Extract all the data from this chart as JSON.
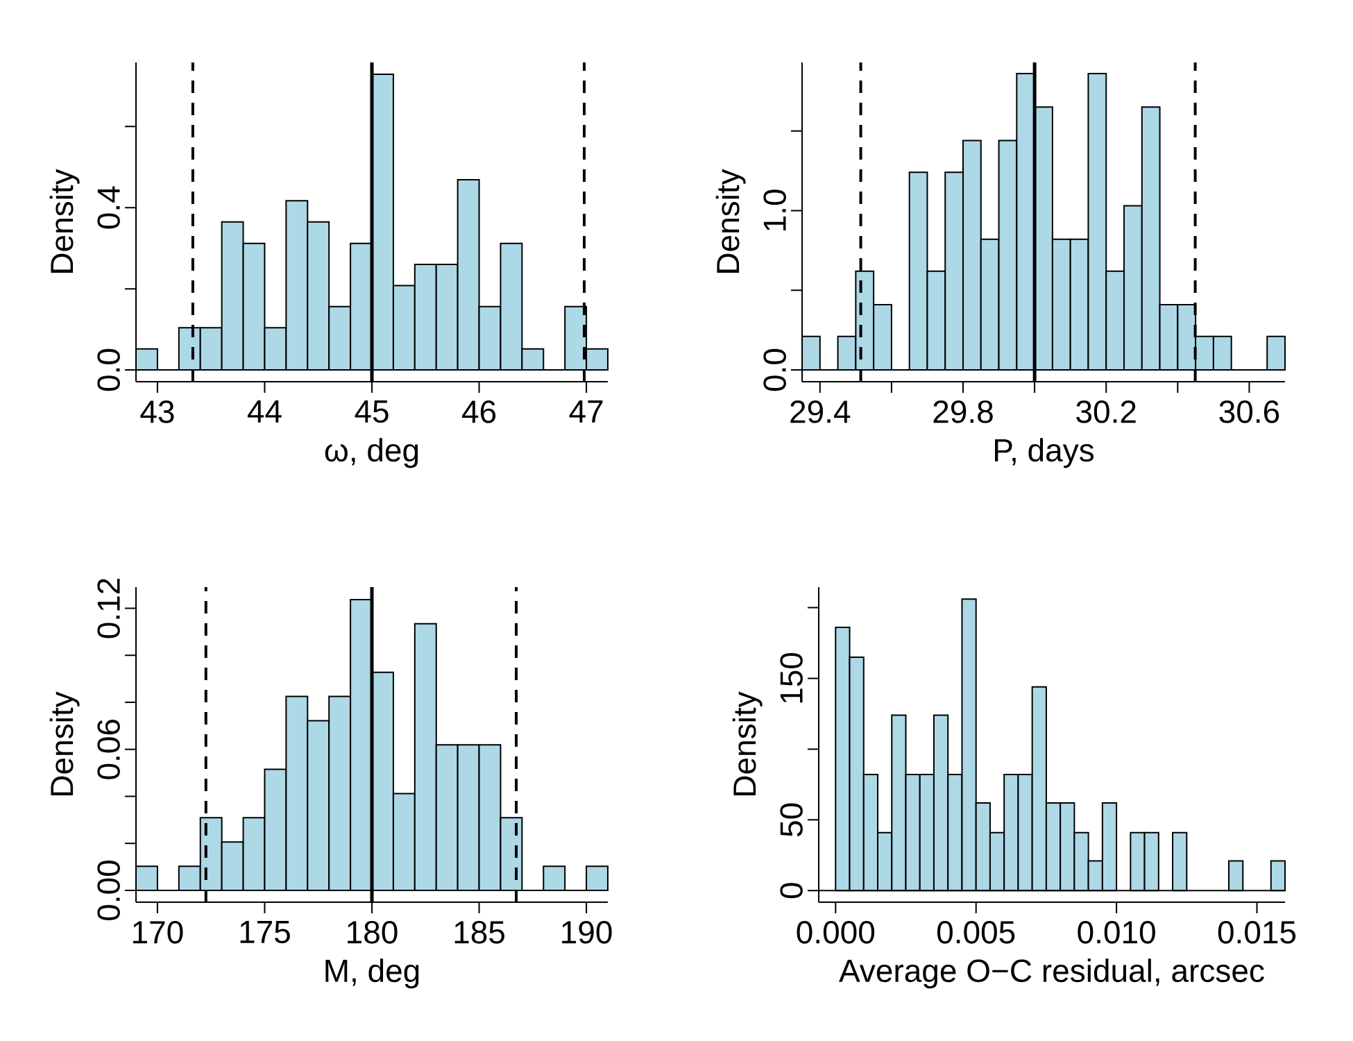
{
  "chart_data": [
    {
      "type": "histogram",
      "xlabel": "ω, deg",
      "ylabel": "Density",
      "color": "#add8e6",
      "bins": [
        42.8,
        43.0,
        43.2,
        43.4,
        43.6,
        43.8,
        44.0,
        44.2,
        44.4,
        44.6,
        44.8,
        45.0,
        45.2,
        45.4,
        45.6,
        45.8,
        46.0,
        46.2,
        46.4,
        46.6,
        46.8,
        47.0,
        47.2
      ],
      "values": [
        0.052,
        0,
        0.104,
        0.104,
        0.365,
        0.312,
        0.104,
        0.417,
        0.365,
        0.156,
        0.312,
        0.729,
        0.208,
        0.26,
        0.26,
        0.469,
        0.156,
        0.312,
        0.052,
        0,
        0.156,
        0.052
      ],
      "xlim": [
        42.8,
        47.2
      ],
      "ylim": [
        -0.029,
        0.758
      ],
      "xticks": [
        43,
        44,
        45,
        46,
        47
      ],
      "yticks": [
        {
          "value": 0,
          "label": "0.0"
        },
        {
          "value": 0.2,
          "label": null
        },
        0.4,
        {
          "value": 0.6,
          "label": null
        }
      ],
      "ref_lines": [
        {
          "axis": "x",
          "value": 43.33,
          "line_style": "dashed",
          "color": "#000000"
        },
        {
          "axis": "x",
          "value": 45,
          "line_style": "solid",
          "color": "#000000"
        },
        {
          "axis": "x",
          "value": 46.98,
          "line_style": "dashed",
          "color": "#000000"
        }
      ]
    },
    {
      "type": "histogram",
      "xlabel": "P, days",
      "ylabel": "Density",
      "color": "#add8e6",
      "bins": [
        29.35,
        29.4,
        29.45,
        29.5,
        29.55,
        29.6,
        29.65,
        29.7,
        29.75,
        29.8,
        29.85,
        29.9,
        29.95,
        30.0,
        30.05,
        30.1,
        30.15,
        30.2,
        30.25,
        30.3,
        30.35,
        30.4,
        30.45,
        30.5,
        30.55,
        30.6,
        30.65,
        30.7
      ],
      "values": [
        0.21,
        0,
        0.21,
        0.62,
        0.41,
        0,
        1.24,
        0.62,
        1.24,
        1.44,
        0.82,
        1.44,
        1.86,
        1.65,
        0.82,
        0.82,
        1.86,
        0.62,
        1.03,
        1.65,
        0.41,
        0.41,
        0.21,
        0.21,
        0,
        0,
        0.21
      ],
      "xlim": [
        29.35,
        30.7
      ],
      "ylim": [
        -0.074,
        1.93
      ],
      "xticks": [
        29.4,
        {
          "value": 29.6,
          "label": null
        },
        29.8,
        {
          "value": 30.0,
          "label": null
        },
        30.2,
        {
          "value": 30.4,
          "label": null
        },
        30.6
      ],
      "yticks": [
        {
          "value": 0,
          "label": "0.0"
        },
        {
          "value": 0.5,
          "label": null
        },
        {
          "value": 1,
          "label": "1.0"
        },
        {
          "value": 1.5,
          "label": null
        }
      ],
      "ref_lines": [
        {
          "axis": "x",
          "value": 29.514,
          "line_style": "dashed",
          "color": "#000000"
        },
        {
          "axis": "x",
          "value": 30.0,
          "line_style": "solid",
          "color": "#000000"
        },
        {
          "axis": "x",
          "value": 30.449,
          "line_style": "dashed",
          "color": "#000000"
        }
      ]
    },
    {
      "type": "histogram",
      "xlabel": "M, deg",
      "ylabel": "Density",
      "color": "#add8e6",
      "bins": [
        169,
        170,
        171,
        172,
        173,
        174,
        175,
        176,
        177,
        178,
        179,
        180,
        181,
        182,
        183,
        184,
        185,
        186,
        187,
        188,
        189,
        190,
        191
      ],
      "values": [
        0.0103,
        0,
        0.0103,
        0.0309,
        0.0206,
        0.0309,
        0.0515,
        0.0825,
        0.0722,
        0.0825,
        0.1237,
        0.0928,
        0.0412,
        0.1134,
        0.0619,
        0.0619,
        0.0619,
        0.0309,
        0,
        0.0103,
        0,
        0.0103
      ],
      "xlim": [
        169,
        191
      ],
      "ylim": [
        -0.005,
        0.129
      ],
      "xticks": [
        170,
        175,
        180,
        185,
        190
      ],
      "yticks": [
        {
          "value": 0,
          "label": "0.00"
        },
        {
          "value": 0.02,
          "label": null
        },
        {
          "value": 0.04,
          "label": null
        },
        {
          "value": 0.06,
          "label": "0.06"
        },
        {
          "value": 0.08,
          "label": null
        },
        {
          "value": 0.1,
          "label": null
        },
        {
          "value": 0.12,
          "label": "0.12"
        }
      ],
      "ref_lines": [
        {
          "axis": "x",
          "value": 172.26,
          "line_style": "dashed",
          "color": "#000000"
        },
        {
          "axis": "x",
          "value": 180,
          "line_style": "solid",
          "color": "#000000"
        },
        {
          "axis": "x",
          "value": 186.73,
          "line_style": "dashed",
          "color": "#000000"
        }
      ]
    },
    {
      "type": "histogram",
      "xlabel": "Average O−C residual, arcsec",
      "ylabel": "Density",
      "color": "#add8e6",
      "bins": [
        0,
        0.0005,
        0.001,
        0.0015,
        0.002,
        0.0025,
        0.003,
        0.0035,
        0.004,
        0.0045,
        0.005,
        0.0055,
        0.006,
        0.0065,
        0.007,
        0.0075,
        0.008,
        0.0085,
        0.009,
        0.0095,
        0.01,
        0.0105,
        0.011,
        0.0115,
        0.012,
        0.0125,
        0.013,
        0.0135,
        0.014,
        0.0145,
        0.015,
        0.0155,
        0.016
      ],
      "values": [
        186,
        165,
        82,
        41,
        124,
        82,
        82,
        124,
        82,
        206,
        62,
        41,
        82,
        82,
        144,
        62,
        62,
        41,
        21,
        62,
        0,
        41,
        41,
        0,
        41,
        0,
        0,
        0,
        21,
        0,
        0,
        21
      ],
      "xlim": [
        -0.0006,
        0.016
      ],
      "ylim": [
        -8.2,
        214.5
      ],
      "xticks": [
        {
          "value": 0,
          "label": "0.000"
        },
        {
          "value": 0.005,
          "label": "0.005"
        },
        {
          "value": 0.01,
          "label": "0.010"
        },
        {
          "value": 0.015,
          "label": "0.015"
        }
      ],
      "yticks": [
        0,
        50,
        {
          "value": 100,
          "label": null
        },
        150,
        {
          "value": 200,
          "label": null
        }
      ]
    }
  ]
}
